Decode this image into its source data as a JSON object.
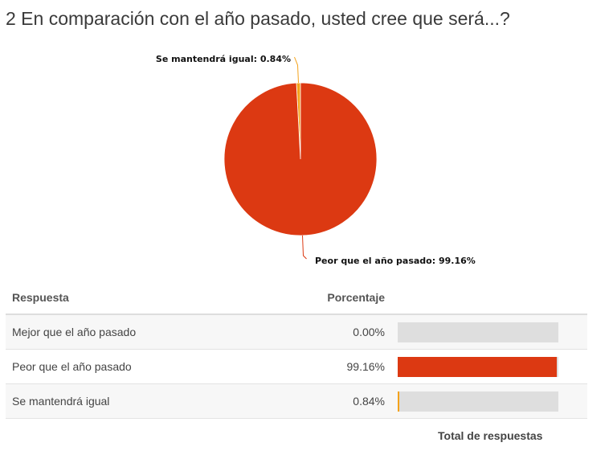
{
  "question_title": "2 En comparación con el año pasado, usted cree que será...?",
  "chart_data": {
    "type": "pie",
    "slices": [
      {
        "label": "Mejor que el año pasado",
        "value": 0.0,
        "color": "#e0e0e0"
      },
      {
        "label": "Peor que el año pasado",
        "value": 99.16,
        "color": "#dc3912"
      },
      {
        "label": "Se mantendrá igual",
        "value": 0.84,
        "color": "#f4a21a"
      }
    ],
    "callouts": [
      {
        "text": "Se mantendrá igual: 0.84%"
      },
      {
        "text": "Peor que el año pasado: 99.16%"
      }
    ]
  },
  "table": {
    "headers": {
      "response": "Respuesta",
      "percentage": "Porcentaje"
    },
    "rows": [
      {
        "label": "Mejor que el año pasado",
        "percent_text": "0.00%",
        "fill": 0.0,
        "color": "#dedede"
      },
      {
        "label": "Peor que el año pasado",
        "percent_text": "99.16%",
        "fill": 0.9916,
        "color": "#dc3912"
      },
      {
        "label": "Se mantendrá igual",
        "percent_text": "0.84%",
        "fill": 0.0084,
        "color": "#f4a21a"
      }
    ],
    "total_label": "Total de respuestas"
  }
}
